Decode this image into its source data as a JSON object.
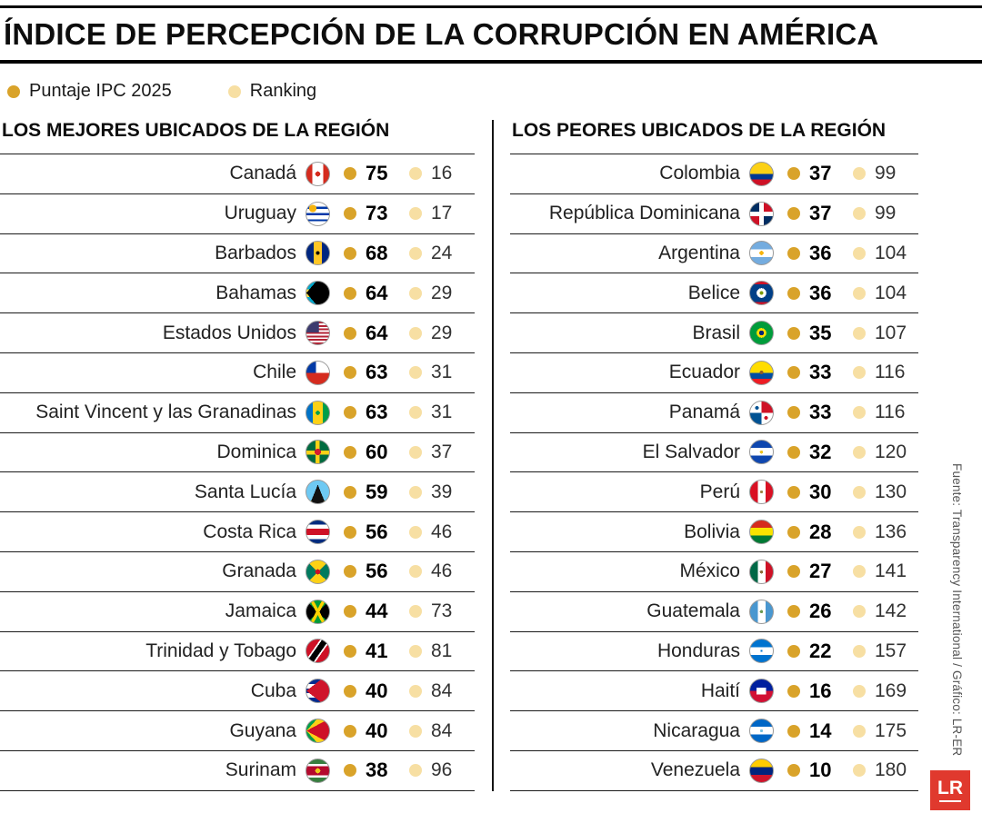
{
  "title": "ÍNDICE DE PERCEPCIÓN DE LA CORRUPCIÓN EN AMÉRICA",
  "legend": {
    "score_label": "Puntaje IPC 2025",
    "rank_label": "Ranking",
    "score_color": "#d9a32a",
    "rank_color": "#f7dfa3"
  },
  "source": "Fuente: Transparency International / Gráfico: LR-ER",
  "logo": {
    "text": "LR",
    "color": "#e0392e"
  },
  "chart_data": {
    "type": "table",
    "title": "ÍNDICE DE PERCEPCIÓN DE LA CORRUPCIÓN EN AMÉRICA",
    "columns": [
      "País",
      "Puntaje IPC 2025",
      "Ranking"
    ],
    "sections": [
      {
        "heading": "LOS MEJORES UBICADOS DE LA REGIÓN",
        "rows": [
          {
            "country": "Canadá",
            "score": 75,
            "rank": 16,
            "flag": "canada-flag",
            "flag_css": "radial-gradient(circle at 50% 50%,#d52b1e 0 16%,transparent 16%),linear-gradient(90deg,#d52b1e 0 26%,#fff 26% 74%,#d52b1e 74% 100%)"
          },
          {
            "country": "Uruguay",
            "score": 73,
            "rank": 17,
            "flag": "uruguay-flag",
            "flag_css": "radial-gradient(circle at 28% 26%,#f6b40e 0 16%,transparent 16%),linear-gradient(180deg,#fff 0 18%,#0038a8 18% 28%,#fff 28% 46%,#0038a8 46% 56%,#fff 56% 73%,#0038a8 73% 83%,#fff 83% 100%)"
          },
          {
            "country": "Barbados",
            "score": 68,
            "rank": 24,
            "flag": "barbados-flag",
            "flag_css": "radial-gradient(circle at 50% 50%,#000 0 12%,transparent 12%),linear-gradient(90deg,#00267f 0 32%,#ffc726 32% 68%,#00267f 68% 100%)"
          },
          {
            "country": "Bahamas",
            "score": 64,
            "rank": 29,
            "flag": "bahamas-flag",
            "flag_css": "conic-gradient(from 40deg at 0% 50%,#000 0 100deg,transparent 100deg),linear-gradient(180deg,#00a9ce 0 33%,#fae042 33% 67%,#00a9ce 67% 100%)"
          },
          {
            "country": "Estados Unidos",
            "score": 64,
            "rank": 29,
            "flag": "usa-flag",
            "flag_css": "linear-gradient(#3c3b6e,#3c3b6e) left top/55% 48% no-repeat,repeating-linear-gradient(180deg,#b22234 0 7.7%,#fff 7.7% 15.4%)"
          },
          {
            "country": "Chile",
            "score": 63,
            "rank": 31,
            "flag": "chile-flag",
            "flag_css": "linear-gradient(#0039a6,#0039a6) left top/42% 50% no-repeat,linear-gradient(180deg,#fff 0 50%,#d52b1e 50% 100%)"
          },
          {
            "country": "Saint Vincent y las Granadinas",
            "score": 63,
            "rank": 31,
            "flag": "saint-vincent-flag",
            "flag_css": "radial-gradient(circle at 50% 50%,#009e49 0 13%,transparent 13%),linear-gradient(90deg,#0072c6 0 28%,#fcd116 28% 72%,#009e49 72% 100%)"
          },
          {
            "country": "Dominica",
            "score": 60,
            "rank": 37,
            "flag": "dominica-flag",
            "flag_css": "radial-gradient(circle at 50% 50%,#d41c30 0 20%,transparent 20%),linear-gradient(#fcd116,#fcd116) 50% 0/18% 100% no-repeat,linear-gradient(#fcd116,#fcd116) 0 50%/100% 18% no-repeat,linear-gradient(#006b3f,#006b3f)"
          },
          {
            "country": "Santa Lucía",
            "score": 59,
            "rank": 39,
            "flag": "santa-lucia-flag",
            "flag_css": "conic-gradient(from 158deg at 50% 18%,#111 0 44deg,transparent 44deg),conic-gradient(from 146deg at 50% 45%,#fcd116 0 68deg,transparent 68deg),linear-gradient(#6ec9f3,#6ec9f3)"
          },
          {
            "country": "Costa Rica",
            "score": 56,
            "rank": 46,
            "flag": "costa-rica-flag",
            "flag_css": "linear-gradient(180deg,#002b7f 0 18%,#fff 18% 36%,#ce1126 36% 64%,#fff 64% 82%,#002b7f 82% 100%)"
          },
          {
            "country": "Granada",
            "score": 56,
            "rank": 46,
            "flag": "granada-flag",
            "flag_css": "radial-gradient(circle at 50% 50%,transparent 0 74%,#ce1126 74%),radial-gradient(circle at 50% 50%,#ce1126 0 16%,transparent 16%),conic-gradient(from -45deg,#fcd116 0 90deg,#007a5e 90deg 180deg,#fcd116 180deg 270deg,#007a5e 270deg 360deg)"
          },
          {
            "country": "Jamaica",
            "score": 44,
            "rank": 73,
            "flag": "jamaica-flag",
            "flag_css": "linear-gradient(62deg,transparent 0 45%,#fed100 45% 55%,transparent 55% 100%),linear-gradient(-62deg,transparent 0 45%,#fed100 45% 55%,transparent 55% 100%),conic-gradient(from -45deg,#009b3a 0 90deg,#000 90deg 180deg,#009b3a 180deg 270deg,#000 270deg 360deg)"
          },
          {
            "country": "Trinidad y Tobago",
            "score": 41,
            "rank": 81,
            "flag": "trinidad-tobago-flag",
            "flag_css": "linear-gradient(125deg,#ce1126 0 36%,#fff 36% 41%,#000 41% 59%,#fff 59% 64%,#ce1126 64% 100%)"
          },
          {
            "country": "Cuba",
            "score": 40,
            "rank": 84,
            "flag": "cuba-flag",
            "flag_css": "conic-gradient(from 52deg at 0% 50%,#cf142b 0 76deg,transparent 76deg),linear-gradient(180deg,#002a8f 0 20%,#fff 20% 40%,#002a8f 40% 60%,#fff 60% 80%,#002a8f 80% 100%)"
          },
          {
            "country": "Guyana",
            "score": 40,
            "rank": 84,
            "flag": "guyana-flag",
            "flag_css": "conic-gradient(from 62deg at 0% 50%,#ce1126 0 56deg,transparent 56deg),conic-gradient(from 42deg at 0% 50%,#fcd116 0 96deg,transparent 96deg),linear-gradient(#009e49,#009e49)"
          },
          {
            "country": "Surinam",
            "score": 38,
            "rank": 96,
            "flag": "surinam-flag",
            "flag_css": "radial-gradient(circle at 50% 50%,#ecc81d 0 16%,transparent 16%),linear-gradient(180deg,#377e3f 0 20%,#fff 20% 30%,#b40a2d 30% 70%,#fff 70% 80%,#377e3f 80% 100%)"
          }
        ]
      },
      {
        "heading": "LOS PEORES UBICADOS DE LA REGIÓN",
        "rows": [
          {
            "country": "Colombia",
            "score": 37,
            "rank": 99,
            "flag": "colombia-flag",
            "flag_css": "linear-gradient(180deg,#fcd116 0 50%,#003893 50% 75%,#ce1126 75% 100%)"
          },
          {
            "country": "República Dominicana",
            "score": 37,
            "rank": 99,
            "flag": "dominican-republic-flag",
            "flag_css": "linear-gradient(#fff,#fff) 50% 0/20% 100% no-repeat,linear-gradient(#fff,#fff) 0 50%/100% 20% no-repeat,conic-gradient(#ce1126 0 90deg,#002d62 90deg 180deg,#ce1126 180deg 270deg,#002d62 270deg 360deg)"
          },
          {
            "country": "Argentina",
            "score": 36,
            "rank": 104,
            "flag": "argentina-flag",
            "flag_css": "radial-gradient(circle at 50% 50%,#f6b40e 0 13%,transparent 13%),linear-gradient(180deg,#74acdf 0 33%,#fff 33% 67%,#74acdf 67% 100%)"
          },
          {
            "country": "Belice",
            "score": 36,
            "rank": 104,
            "flag": "belice-flag",
            "flag_css": "radial-gradient(circle at 50% 50%,#7a9a01 0 12%,#fff 12% 30%,transparent 30%),linear-gradient(180deg,#ce1126 0 11%,#003f87 11% 89%,#ce1126 89% 100%)"
          },
          {
            "country": "Brasil",
            "score": 35,
            "rank": 107,
            "flag": "brasil-flag",
            "flag_css": "radial-gradient(circle at 50% 50%,#002776 0 15%,#ffdf00 15% 30%,transparent 30%),linear-gradient(#009c3b,#009c3b)"
          },
          {
            "country": "Ecuador",
            "score": 33,
            "rank": 116,
            "flag": "ecuador-flag",
            "flag_css": "radial-gradient(circle at 50% 48%,#8c5a2b 0 11%,transparent 11%),linear-gradient(180deg,#ffdd00 0 50%,#034ea2 50% 75%,#ed1c24 75% 100%)"
          },
          {
            "country": "Panamá",
            "score": 33,
            "rank": 116,
            "flag": "panama-flag",
            "flag_css": "radial-gradient(circle at 30% 28%,#005293 0 8%,transparent 8%),radial-gradient(circle at 70% 72%,#ce1126 0 8%,transparent 8%),conic-gradient(#ce1126 0 90deg,#fff 90deg 180deg,#005293 180deg 270deg,#fff 270deg 360deg)"
          },
          {
            "country": "El Salvador",
            "score": 32,
            "rank": 120,
            "flag": "el-salvador-flag",
            "flag_css": "radial-gradient(circle at 50% 50%,#f0c420 0 10%,transparent 10%),linear-gradient(180deg,#0f47af 0 33%,#fff 33% 67%,#0f47af 67% 100%)"
          },
          {
            "country": "Perú",
            "score": 30,
            "rank": 130,
            "flag": "peru-flag",
            "flag_css": "radial-gradient(circle at 50% 50%,#9c8444 0 9%,transparent 9%),linear-gradient(90deg,#d91023 0 33%,#fff 33% 67%,#d91023 67% 100%)"
          },
          {
            "country": "Bolivia",
            "score": 28,
            "rank": 136,
            "flag": "bolivia-flag",
            "flag_css": "linear-gradient(180deg,#d52b1e 0 33%,#f9e300 33% 67%,#007934 67% 100%)"
          },
          {
            "country": "México",
            "score": 27,
            "rank": 141,
            "flag": "mexico-flag",
            "flag_css": "radial-gradient(circle at 50% 50%,#8a6d3b 0 10%,transparent 10%),linear-gradient(90deg,#006847 0 33%,#fff 33% 67%,#ce1126 67% 100%)"
          },
          {
            "country": "Guatemala",
            "score": 26,
            "rank": 142,
            "flag": "guatemala-flag",
            "flag_css": "radial-gradient(circle at 50% 50%,#6a9a52 0 10%,transparent 10%),linear-gradient(90deg,#4997d0 0 33%,#fff 33% 67%,#4997d0 67% 100%)"
          },
          {
            "country": "Honduras",
            "score": 22,
            "rank": 157,
            "flag": "honduras-flag",
            "flag_css": "radial-gradient(circle at 50% 50%,#0073cf 0 7%,transparent 7%),linear-gradient(180deg,#0073cf 0 33%,#fff 33% 67%,#0073cf 67% 100%)"
          },
          {
            "country": "Haití",
            "score": 16,
            "rank": 169,
            "flag": "haiti-flag",
            "flag_css": "linear-gradient(#fff,#fff) 50% 50%/42% 30% no-repeat,linear-gradient(180deg,#00209f 0 50%,#d21034 50% 100%)"
          },
          {
            "country": "Nicaragua",
            "score": 14,
            "rank": 175,
            "flag": "nicaragua-flag",
            "flag_css": "radial-gradient(circle at 50% 50%,#7ac1e0 0 9%,transparent 9%),linear-gradient(180deg,#0067c6 0 33%,#fff 33% 67%,#0067c6 67% 100%)"
          },
          {
            "country": "Venezuela",
            "score": 10,
            "rank": 180,
            "flag": "venezuela-flag",
            "flag_css": "linear-gradient(180deg,#ffcc00 0 33%,#00247d 33% 67%,#cf142b 67% 100%)"
          }
        ]
      }
    ]
  }
}
